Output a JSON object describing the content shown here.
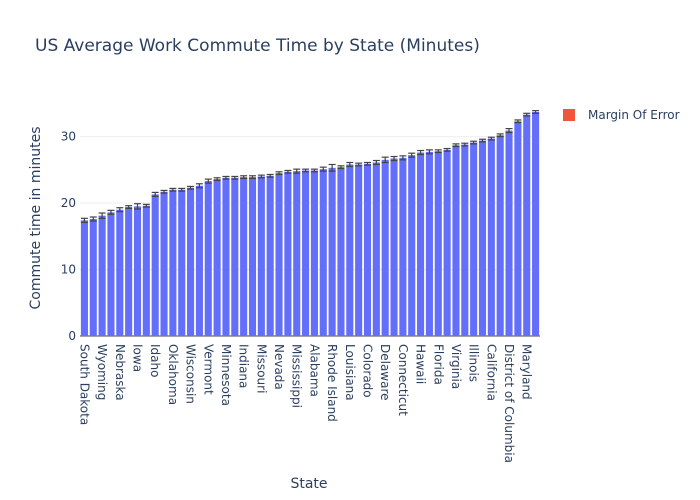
{
  "chart_data": {
    "type": "bar",
    "title": "US Average Work Commute Time by State (Minutes)",
    "x_label": "State",
    "y_label": "Commute time in minutes",
    "categories": [
      "South Dakota",
      null,
      "Wyoming",
      null,
      "Nebraska",
      null,
      "Iowa",
      null,
      "Idaho",
      null,
      "Oklahoma",
      null,
      "Wisconsin",
      null,
      "Vermont",
      null,
      "Minnesota",
      null,
      "Indiana",
      null,
      "Missouri",
      null,
      "Nevada",
      null,
      "Mississippi",
      null,
      "Alabama",
      null,
      "Rhode Island",
      null,
      "Louisiana",
      null,
      "Colorado",
      null,
      "Delaware",
      null,
      "Connecticut",
      null,
      "Hawaii",
      null,
      "Florida",
      null,
      "Virginia",
      null,
      "Illinois",
      null,
      "California",
      null,
      "District of Columbia",
      null,
      "Maryland",
      null
    ],
    "series": [
      {
        "name": "Margin Of Error",
        "color": "#636efa",
        "legend_color": "#ef553b",
        "values": [
          17.4,
          17.6,
          18.1,
          18.6,
          19.0,
          19.4,
          19.5,
          19.6,
          21.3,
          21.7,
          22.0,
          22.0,
          22.3,
          22.6,
          23.3,
          23.6,
          23.8,
          23.8,
          23.9,
          23.9,
          24.0,
          24.1,
          24.5,
          24.7,
          24.8,
          24.9,
          24.9,
          25.1,
          25.3,
          25.4,
          25.8,
          25.8,
          25.9,
          26.1,
          26.5,
          26.7,
          26.8,
          27.2,
          27.6,
          27.7,
          27.8,
          28.0,
          28.7,
          28.8,
          29.1,
          29.4,
          29.7,
          30.2,
          30.9,
          32.3,
          33.3,
          33.7
        ],
        "errors": [
          0.3,
          0.3,
          0.4,
          0.3,
          0.3,
          0.2,
          0.4,
          0.2,
          0.3,
          0.2,
          0.2,
          0.2,
          0.2,
          0.3,
          0.3,
          0.2,
          0.2,
          0.2,
          0.2,
          0.2,
          0.2,
          0.2,
          0.2,
          0.2,
          0.3,
          0.2,
          0.2,
          0.3,
          0.5,
          0.2,
          0.3,
          0.2,
          0.2,
          0.3,
          0.4,
          0.3,
          0.3,
          0.3,
          0.3,
          0.3,
          0.2,
          0.2,
          0.2,
          0.2,
          0.2,
          0.2,
          0.2,
          0.2,
          0.3,
          0.2,
          0.2,
          0.2
        ]
      }
    ],
    "ylim": [
      0,
      35.5
    ],
    "yticks": [
      0,
      10,
      20,
      30
    ],
    "grid": true,
    "legend": "right"
  }
}
